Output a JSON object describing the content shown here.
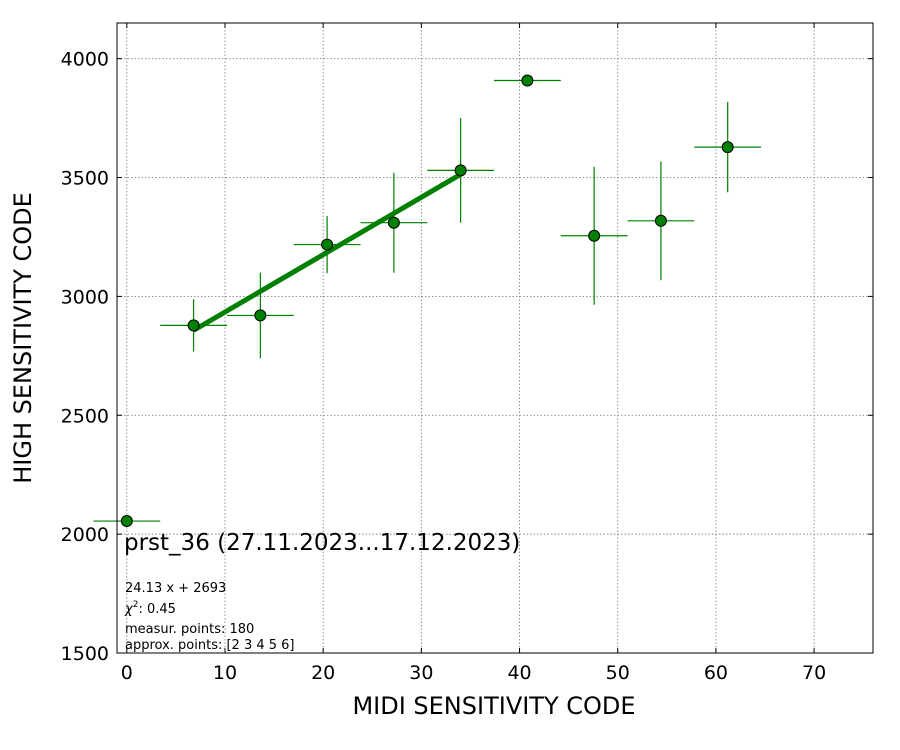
{
  "chart_data": {
    "type": "scatter",
    "xlabel": "MIDI SENSITIVITY CODE",
    "ylabel": "HIGH SENSITIVITY CODE",
    "xlim": [
      -1,
      76
    ],
    "ylim": [
      1500,
      4150
    ],
    "x_ticks": [
      0,
      10,
      20,
      30,
      40,
      50,
      60,
      70
    ],
    "y_ticks": [
      1500,
      2000,
      2500,
      3000,
      3500,
      4000
    ],
    "grid": true,
    "points": [
      {
        "x": 0,
        "y": 2055,
        "xerr": 3.4,
        "yerr": 0
      },
      {
        "x": 6.8,
        "y": 2878,
        "xerr": 3.4,
        "yerr": 110
      },
      {
        "x": 13.6,
        "y": 2920,
        "xerr": 3.4,
        "yerr": 180
      },
      {
        "x": 20.4,
        "y": 3218,
        "xerr": 3.4,
        "yerr": 120
      },
      {
        "x": 27.2,
        "y": 3310,
        "xerr": 3.4,
        "yerr": 210
      },
      {
        "x": 34.0,
        "y": 3530,
        "xerr": 3.4,
        "yerr": 220
      },
      {
        "x": 40.8,
        "y": 3908,
        "xerr": 3.4,
        "yerr": 0
      },
      {
        "x": 47.6,
        "y": 3255,
        "xerr": 3.4,
        "yerr": 290
      },
      {
        "x": 54.4,
        "y": 3318,
        "xerr": 3.4,
        "yerr": 250
      },
      {
        "x": 61.2,
        "y": 3628,
        "xerr": 3.4,
        "yerr": 190
      }
    ],
    "fit": {
      "slope": 24.13,
      "intercept": 2693,
      "x_from": 6.8,
      "x_to": 34.0
    },
    "colors": {
      "points": "#008000",
      "fit": "#008000",
      "grid": "#888888"
    },
    "annotations": {
      "title": "prst_36 (27.11.2023...17.12.2023)",
      "equation": "24.13 x + 2693",
      "chi2_prefix": "χ",
      "chi2_sup": "2",
      "chi2_value": ": 0.45",
      "measur": "measur. points: 180",
      "approx": "approx. points: [2 3 4 5 6]"
    }
  }
}
